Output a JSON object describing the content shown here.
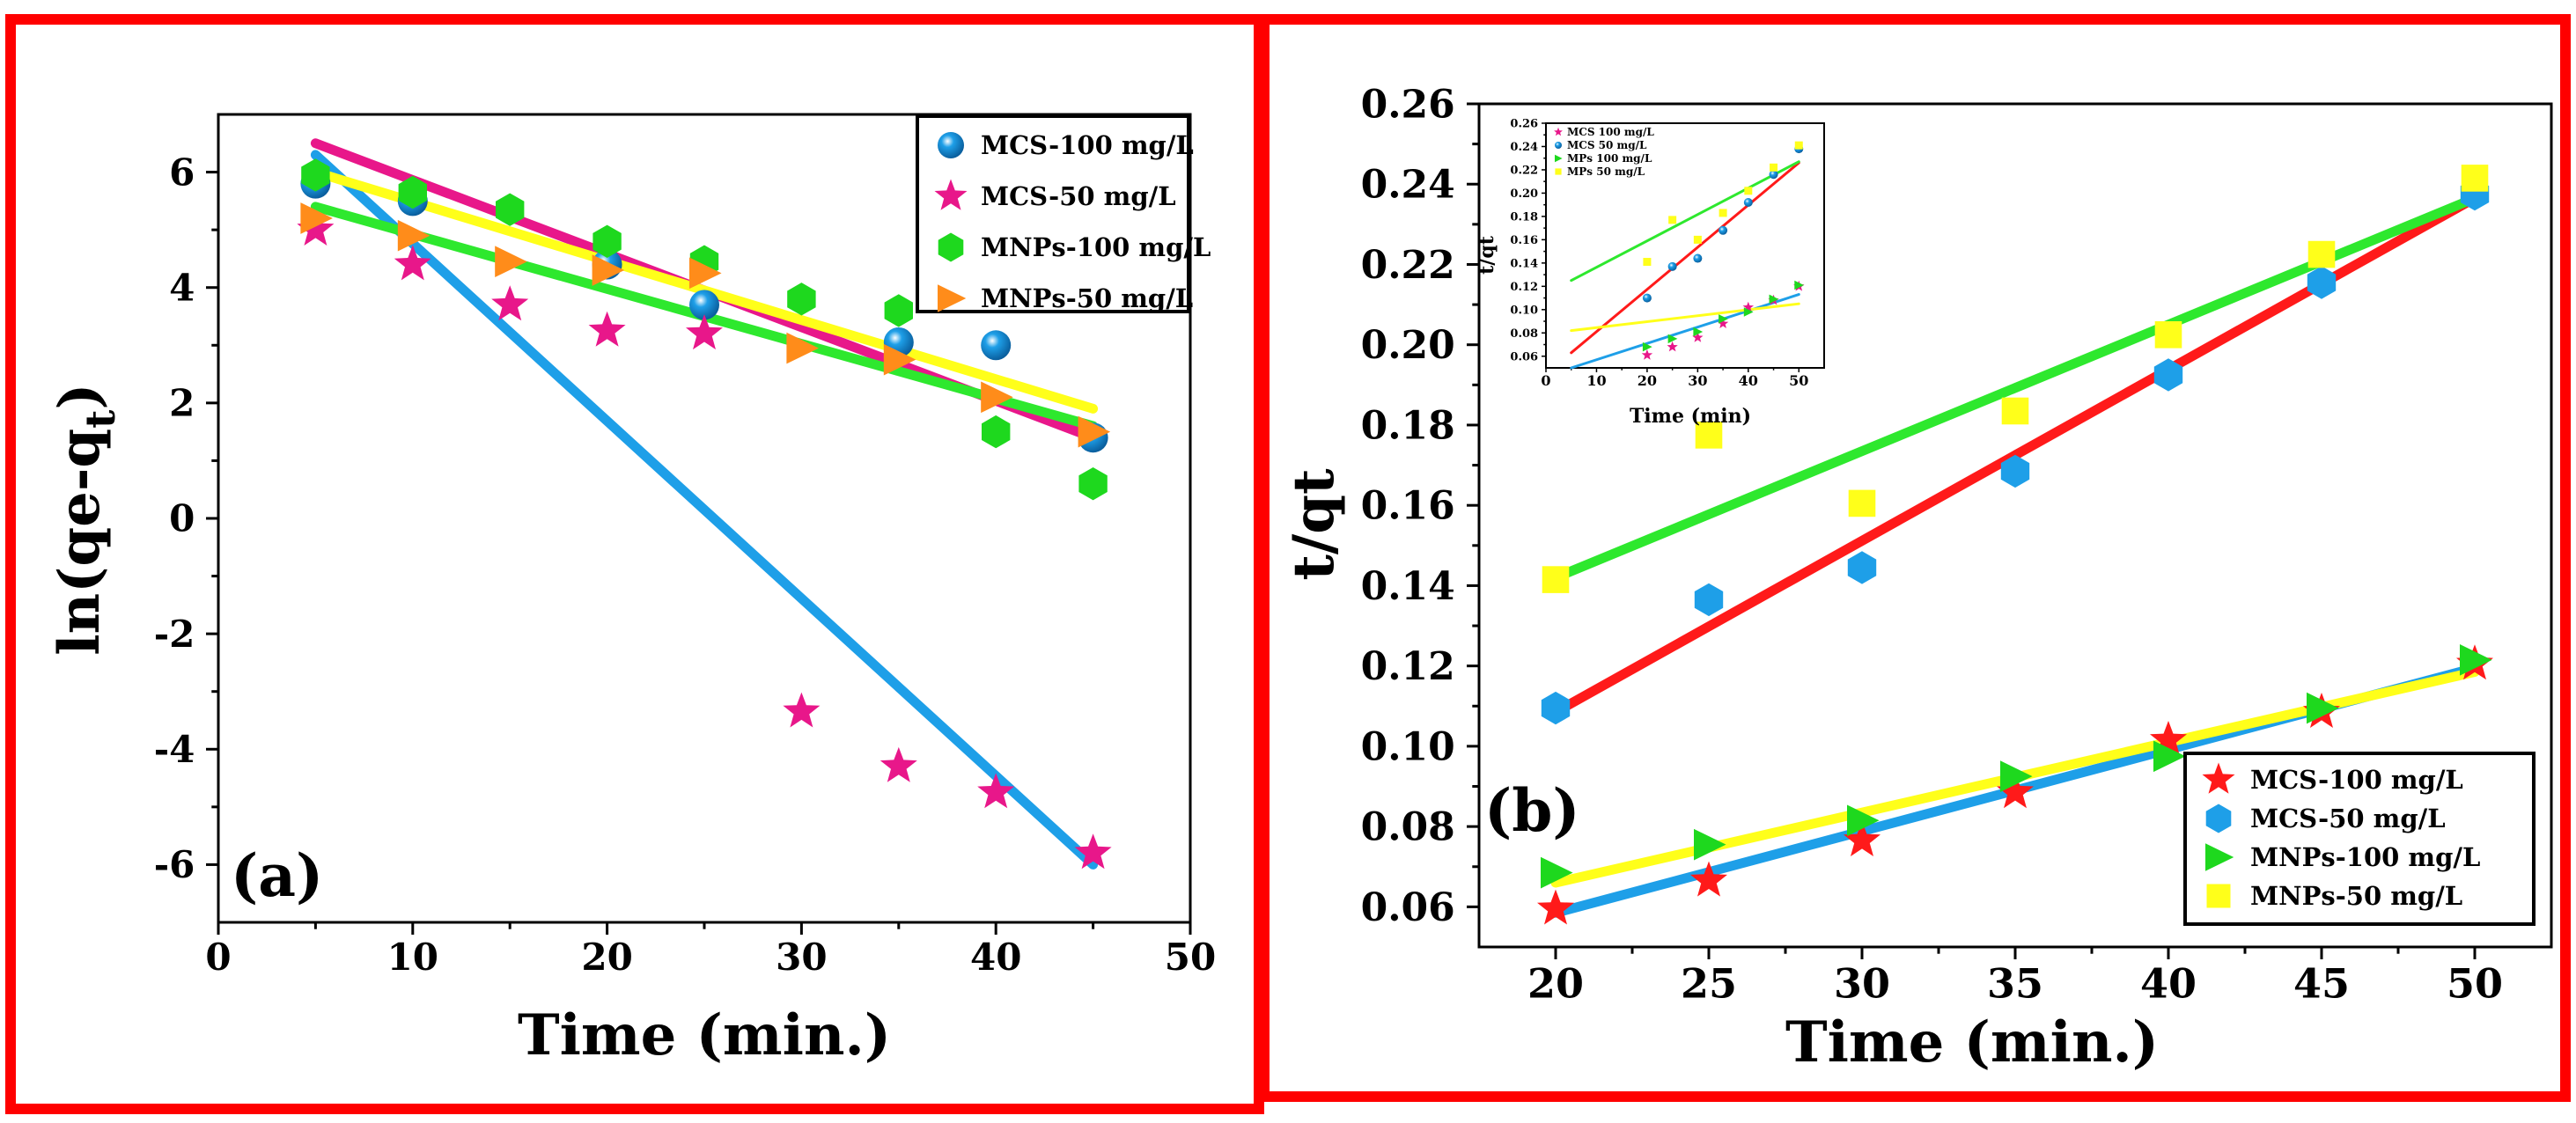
{
  "chart_data": [
    {
      "type": "scatter",
      "panel_label": "(a)",
      "xlabel": "Time (min.)",
      "ylabel_main": "ln(qe-q",
      "ylabel_sub": "t",
      "ylabel_close": ")",
      "xlim": [
        0,
        50
      ],
      "ylim": [
        -7,
        7
      ],
      "xticks": [
        "0",
        "10",
        "20",
        "30",
        "40",
        "50"
      ],
      "xtick_values": [
        0,
        10,
        20,
        30,
        40,
        50
      ],
      "yticks": [
        "-6",
        "-4",
        "-2",
        "0",
        "2",
        "4",
        "6"
      ],
      "ytick_values": [
        -6,
        -4,
        -2,
        0,
        2,
        4,
        6
      ],
      "legend_position": "top-right",
      "series": [
        {
          "name": "MCS-100 mg/L",
          "marker": "sphere",
          "color": "#1e9fe8",
          "x": [
            5,
            10,
            20,
            25,
            35,
            40,
            45
          ],
          "y": [
            5.8,
            5.5,
            4.4,
            3.7,
            3.05,
            3.0,
            1.4
          ],
          "fit": [
            [
              5,
              6.3
            ],
            [
              45,
              -6.0
            ]
          ],
          "fit_color": "#1e9fe8"
        },
        {
          "name": "MCS-50 mg/L",
          "marker": "star",
          "color": "#e8178a",
          "x": [
            5,
            10,
            15,
            20,
            25,
            30,
            35,
            40,
            45
          ],
          "y": [
            5.0,
            4.4,
            3.7,
            3.25,
            3.2,
            -3.35,
            -4.3,
            -4.75,
            -5.8
          ],
          "fit": [
            [
              5,
              6.5
            ],
            [
              45,
              1.4
            ]
          ],
          "fit_color": "#e8178a"
        },
        {
          "name": "MNPs-100 mg/L",
          "marker": "hexagon",
          "color": "#1ed81e",
          "x": [
            5,
            10,
            15,
            20,
            25,
            30,
            35,
            40,
            45
          ],
          "y": [
            5.95,
            5.65,
            5.35,
            4.8,
            4.45,
            3.8,
            3.6,
            1.5,
            0.6
          ],
          "fit": [
            [
              5,
              5.4
            ],
            [
              45,
              1.6
            ]
          ],
          "fit_color": "#2ee82e"
        },
        {
          "name": "MNPs-50 mg/L",
          "marker": "triangle-right",
          "color": "#ff8c1a",
          "x": [
            5,
            10,
            15,
            20,
            25,
            30,
            35,
            40,
            45
          ],
          "y": [
            5.2,
            4.9,
            4.45,
            4.3,
            4.25,
            2.95,
            2.75,
            2.1,
            1.5
          ],
          "fit": [
            [
              5,
              6.0
            ],
            [
              45,
              1.9
            ]
          ],
          "fit_color": "#ffff1a"
        }
      ]
    },
    {
      "type": "scatter",
      "panel_label": "(b)",
      "xlabel": "Time (min.)",
      "ylabel": "t/qt",
      "xlim": [
        17.5,
        52.5
      ],
      "ylim": [
        0.05,
        0.26
      ],
      "xticks": [
        "20",
        "25",
        "30",
        "35",
        "40",
        "45",
        "50"
      ],
      "xtick_values": [
        20,
        25,
        30,
        35,
        40,
        45,
        50
      ],
      "yticks": [
        "0.06",
        "0.08",
        "0.10",
        "0.12",
        "0.14",
        "0.16",
        "0.18",
        "0.20",
        "0.22",
        "0.24",
        "0.26"
      ],
      "ytick_values": [
        0.06,
        0.08,
        0.1,
        0.12,
        0.14,
        0.16,
        0.18,
        0.2,
        0.22,
        0.24,
        0.26
      ],
      "legend_position": "bottom-right",
      "series": [
        {
          "name": "MCS-100 mg/L",
          "marker": "star",
          "color": "#ff1a1a",
          "x": [
            20,
            25,
            30,
            35,
            40,
            45,
            50
          ],
          "y": [
            0.0595,
            0.0665,
            0.0765,
            0.0885,
            0.1015,
            0.1085,
            0.1205
          ],
          "fit": [
            [
              20,
              0.0585
            ],
            [
              50,
              0.1195
            ]
          ],
          "fit_color": "#1e9fe8"
        },
        {
          "name": "MCS-50 mg/L",
          "marker": "hexagon",
          "color": "#1e9fe8",
          "x": [
            20,
            25,
            30,
            35,
            40,
            45,
            50
          ],
          "y": [
            0.1095,
            0.1365,
            0.1445,
            0.1685,
            0.1925,
            0.2155,
            0.2375
          ],
          "fit": [
            [
              20,
              0.1085
            ],
            [
              50,
              0.2365
            ]
          ],
          "fit_color": "#ff1a1a"
        },
        {
          "name": "MNPs-100 mg/L",
          "marker": "triangle-right",
          "color": "#1ed81e",
          "x": [
            20,
            25,
            30,
            35,
            40,
            45,
            50
          ],
          "y": [
            0.0685,
            0.0755,
            0.0815,
            0.0925,
            0.0975,
            0.1095,
            0.1215
          ],
          "fit": [
            [
              20,
              0.142
            ],
            [
              50,
              0.2365
            ]
          ],
          "fit_color": "#2ee82e"
        },
        {
          "name": "MNPs-50 mg/L",
          "marker": "square",
          "color": "#ffff1a",
          "x": [
            20,
            25,
            30,
            35,
            40,
            45,
            50
          ],
          "y": [
            0.1415,
            0.1775,
            0.1605,
            0.1835,
            0.2025,
            0.2225,
            0.2415
          ],
          "fit": [
            [
              20,
              0.066
            ],
            [
              50,
              0.1185
            ]
          ],
          "fit_color": "#ffff1a"
        }
      ]
    },
    {
      "type": "scatter",
      "role": "inset",
      "xlabel": "Time (min)",
      "ylabel": "t/qt",
      "xlim": [
        0,
        55
      ],
      "ylim": [
        0.05,
        0.26
      ],
      "xticks": [
        "0",
        "10",
        "20",
        "30",
        "40",
        "50"
      ],
      "xtick_values": [
        0,
        10,
        20,
        30,
        40,
        50
      ],
      "yticks": [
        "0.06",
        "0.08",
        "0.10",
        "0.12",
        "0.14",
        "0.16",
        "0.18",
        "0.20",
        "0.22",
        "0.24",
        "0.26"
      ],
      "ytick_values": [
        0.06,
        0.08,
        0.1,
        0.12,
        0.14,
        0.16,
        0.18,
        0.2,
        0.22,
        0.24,
        0.26
      ],
      "legend_position": "top-left",
      "series": [
        {
          "name": "MCS 100 mg/L",
          "marker": "star",
          "color": "#e8178a",
          "x": [
            20,
            25,
            30,
            35,
            40,
            45,
            50
          ],
          "y": [
            0.061,
            0.068,
            0.076,
            0.088,
            0.102,
            0.108,
            0.12
          ],
          "fit": [
            [
              5,
              0.05
            ],
            [
              50,
              0.113
            ]
          ],
          "fit_color": "#1e9fe8"
        },
        {
          "name": "MCS 50 mg/L",
          "marker": "sphere",
          "color": "#1e9fe8",
          "x": [
            20,
            25,
            30,
            35,
            40,
            45,
            50
          ],
          "y": [
            0.11,
            0.137,
            0.144,
            0.168,
            0.192,
            0.216,
            0.238
          ],
          "fit": [
            [
              5,
              0.063
            ],
            [
              50,
              0.226
            ]
          ],
          "fit_color": "#ff1a1a"
        },
        {
          "name": "MPs 100 mg/L",
          "marker": "triangle-right",
          "color": "#1ed81e",
          "x": [
            20,
            25,
            30,
            35,
            40,
            45,
            50
          ],
          "y": [
            0.068,
            0.075,
            0.081,
            0.092,
            0.098,
            0.109,
            0.121
          ],
          "fit": [
            [
              5,
              0.125
            ],
            [
              50,
              0.227
            ]
          ],
          "fit_color": "#2ee82e"
        },
        {
          "name": "MPs 50 mg/L",
          "marker": "square",
          "color": "#ffff1a",
          "x": [
            20,
            25,
            30,
            35,
            40,
            45,
            50
          ],
          "y": [
            0.141,
            0.177,
            0.16,
            0.183,
            0.202,
            0.222,
            0.241
          ],
          "fit": [
            [
              5,
              0.082
            ],
            [
              50,
              0.105
            ]
          ],
          "fit_color": "#ffff1a"
        }
      ]
    }
  ]
}
